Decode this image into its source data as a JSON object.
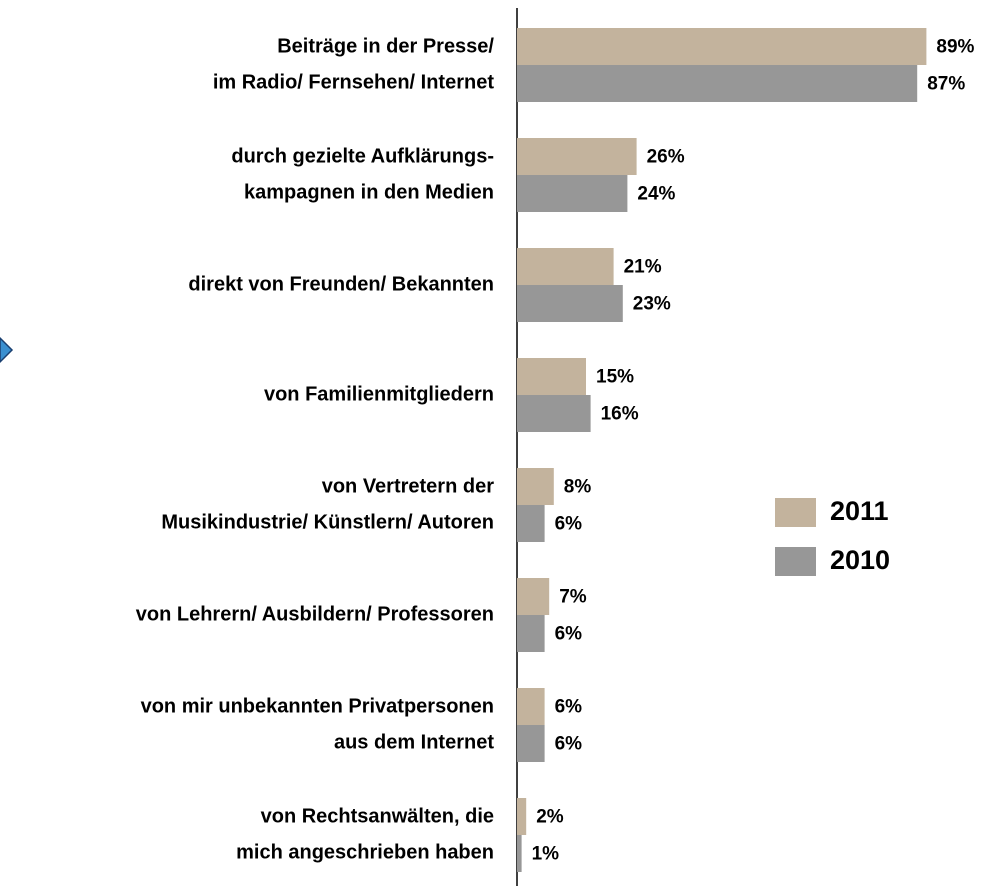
{
  "chart_data": {
    "type": "bar",
    "orientation": "horizontal",
    "categories": [
      [
        "Beiträge in der Presse/",
        "im Radio/ Fernsehen/ Internet"
      ],
      [
        "durch gezielte Aufklärungs-",
        "kampagnen in den Medien"
      ],
      [
        "direkt von Freunden/ Bekannten"
      ],
      [
        "von Familienmitgliedern"
      ],
      [
        "von Vertretern der",
        "Musikindustrie/ Künstlern/ Autoren"
      ],
      [
        "von Lehrern/ Ausbildern/ Professoren"
      ],
      [
        "von mir unbekannten Privatpersonen",
        "aus dem Internet"
      ],
      [
        "von Rechtsanwälten, die",
        "mich angeschrieben haben"
      ]
    ],
    "series": [
      {
        "name": "2011",
        "color": "#c3b39d",
        "values": [
          89,
          26,
          21,
          15,
          8,
          7,
          6,
          2
        ],
        "value_labels": [
          "89%",
          "26%",
          "21%",
          "15%",
          "8%",
          "7%",
          "6%",
          "2%"
        ]
      },
      {
        "name": "2010",
        "color": "#979797",
        "values": [
          87,
          24,
          23,
          16,
          6,
          6,
          6,
          1
        ],
        "value_labels": [
          "87%",
          "24%",
          "23%",
          "16%",
          "6%",
          "6%",
          "6%",
          "1%"
        ]
      }
    ]
  }
}
